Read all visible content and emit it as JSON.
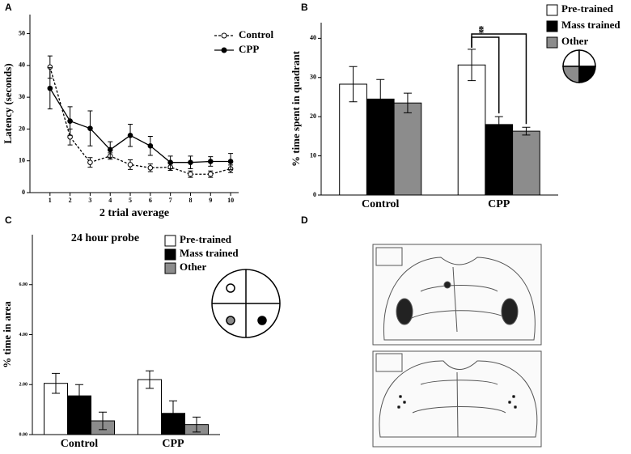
{
  "chart_data": [
    {
      "type": "line",
      "panel_label": "A",
      "xlabel": "2 trial average",
      "ylabel": "Latency (seconds)",
      "x": [
        1,
        2,
        3,
        4,
        5,
        6,
        7,
        8,
        9,
        10
      ],
      "xlim": [
        0,
        10.4
      ],
      "xticks": [
        1,
        2,
        3,
        4,
        5,
        6,
        7,
        8,
        9,
        10
      ],
      "ylim": [
        0,
        56
      ],
      "yticks": [
        0,
        10,
        20,
        30,
        40,
        50
      ],
      "legend": "upper right",
      "series": [
        {
          "name": "Control",
          "color": "#000000",
          "marker_fill": "#ffffff",
          "dashed": true,
          "values": [
            39.5,
            17.5,
            9.5,
            11.5,
            8.8,
            7.8,
            8,
            5.8,
            5.8,
            7.5
          ],
          "errors": [
            3.5,
            2.5,
            1.5,
            1,
            1.5,
            1.2,
            1,
            1,
            1,
            1.2
          ]
        },
        {
          "name": "CPP",
          "color": "#000000",
          "marker_fill": "#000000",
          "dashed": false,
          "values": [
            32.8,
            22.5,
            20.2,
            13.5,
            18,
            14.7,
            9.5,
            9.5,
            9.8,
            9.8
          ],
          "errors": [
            6.5,
            4.5,
            5.5,
            2.5,
            3.5,
            3,
            2,
            2,
            1.5,
            2.5
          ]
        }
      ]
    },
    {
      "type": "bar",
      "panel_label": "B",
      "ylabel": "% time spent in quadrant",
      "categories": [
        "Control",
        "CPP"
      ],
      "ylim": [
        0,
        44
      ],
      "yticks": [
        0,
        10,
        20,
        30,
        40
      ],
      "legend": "upper right",
      "annotations": [
        "*",
        "*"
      ],
      "series": [
        {
          "name": "Pre-trained",
          "color": "#ffffff",
          "values": [
            28.3,
            33.2
          ],
          "errors": [
            4.5,
            4
          ]
        },
        {
          "name": "Mass trained",
          "color": "#000000",
          "values": [
            24.5,
            18
          ],
          "errors": [
            5,
            2
          ]
        },
        {
          "name": "Other",
          "color": "#8c8c8c",
          "values": [
            23.5,
            16.3
          ],
          "errors": [
            2.5,
            1
          ]
        }
      ]
    },
    {
      "type": "bar",
      "panel_label": "C",
      "title": "24 hour probe",
      "ylabel": "% time in area",
      "categories": [
        "Control",
        "CPP"
      ],
      "ylim": [
        0,
        8
      ],
      "yticks": [
        {
          "value": 0,
          "label": "0.00"
        },
        {
          "value": 2,
          "label": "2.00"
        },
        {
          "value": 4,
          "label": "4.00"
        },
        {
          "value": 6,
          "label": "6.00"
        }
      ],
      "legend": "upper right",
      "series": [
        {
          "name": "Pre-trained",
          "color": "#ffffff",
          "values": [
            2.05,
            2.2
          ],
          "errors": [
            0.4,
            0.35
          ]
        },
        {
          "name": "Mass trained",
          "color": "#000000",
          "values": [
            1.55,
            0.85
          ],
          "errors": [
            0.45,
            0.5
          ]
        },
        {
          "name": "Other",
          "color": "#8c8c8c",
          "values": [
            0.55,
            0.4
          ],
          "errors": [
            0.35,
            0.3
          ]
        }
      ]
    }
  ],
  "panel_d": {
    "label": "D"
  }
}
